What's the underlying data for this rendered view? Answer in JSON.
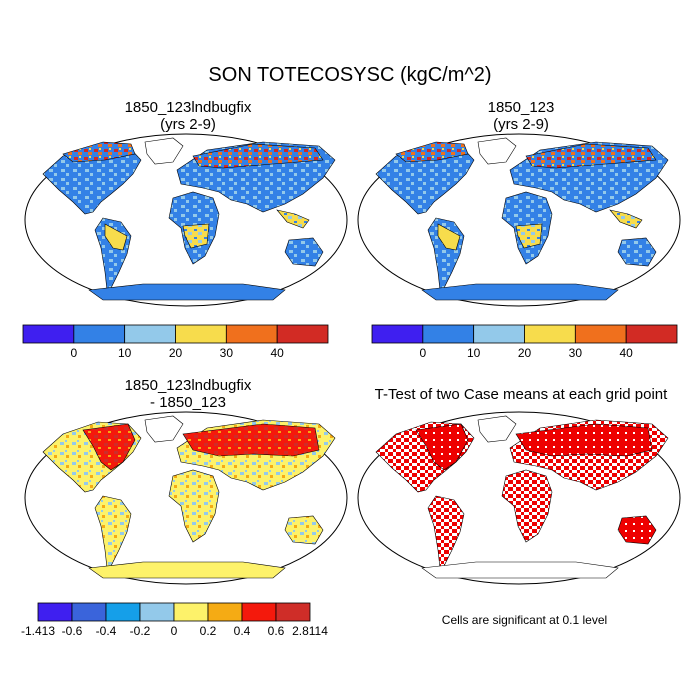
{
  "title": "SON TOTECOSYSC (kgC/m^2)",
  "panels": [
    {
      "id": "p1",
      "title_line1": "1850_123lndbugfix",
      "title_line2": "(yrs 2-9)"
    },
    {
      "id": "p2",
      "title_line1": "1850_123",
      "title_line2": "(yrs 2-9)"
    },
    {
      "id": "p3",
      "title_line1": "1850_123lndbugfix",
      "title_line2": "- 1850_123"
    },
    {
      "id": "p4",
      "title_line1": "T-Test of two Case means at each grid point",
      "title_line2": ""
    }
  ],
  "colorbar_abs": {
    "colors": [
      "#3f1ff0",
      "#3381e6",
      "#93c9ea",
      "#f7dc4c",
      "#f0701d",
      "#d22b24"
    ],
    "labels": [
      "0",
      "10",
      "20",
      "30",
      "40"
    ]
  },
  "colorbar_diff": {
    "colors": [
      "#3f1ff0",
      "#3a64db",
      "#159fe9",
      "#93c9ea",
      "#fdf26a",
      "#f5ab14",
      "#f4190c",
      "#cf2d28"
    ],
    "labels": [
      "-1.413",
      "-0.6",
      "-0.4",
      "-0.2",
      "0",
      "0.2",
      "0.4",
      "0.6",
      "2.8114"
    ]
  },
  "significance_note": "Cells are significant at 0.1 level",
  "significance_color": "#ee0000"
}
